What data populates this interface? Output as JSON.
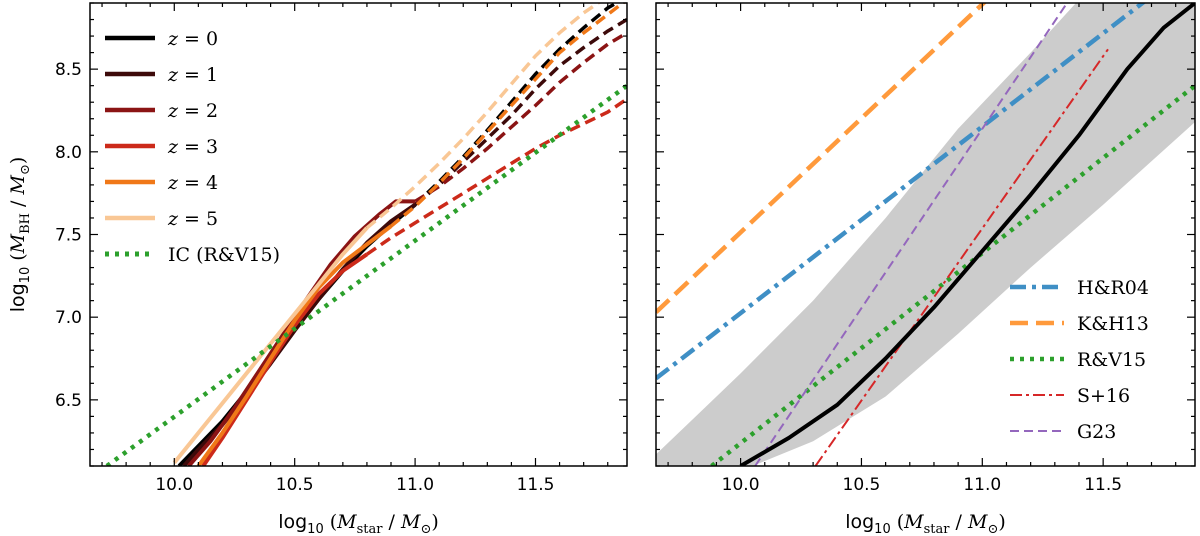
{
  "chart_data": [
    {
      "type": "line",
      "panel": "left",
      "xlabel": "log10 (Mstar / M⊙)",
      "ylabel": "log10 (MBH / M⊙)",
      "xlim": [
        9.65,
        11.88
      ],
      "ylim": [
        6.1,
        8.9
      ],
      "xticks": [
        "10.0",
        "10.5",
        "11.0",
        "11.5"
      ],
      "yticks": [
        "6.5",
        "7.0",
        "7.5",
        "8.0",
        "8.5"
      ],
      "legend_position": "upper-left",
      "series": [
        {
          "name": "z = 0",
          "color": "#000000",
          "style": "solid",
          "points": [
            [
              10.02,
              6.1
            ],
            [
              10.1,
              6.22
            ],
            [
              10.2,
              6.37
            ],
            [
              10.3,
              6.55
            ],
            [
              10.4,
              6.74
            ],
            [
              10.5,
              6.93
            ],
            [
              10.6,
              7.11
            ],
            [
              10.7,
              7.28
            ],
            [
              10.8,
              7.43
            ],
            [
              10.9,
              7.56
            ],
            [
              11.0,
              7.68
            ]
          ],
          "dashed_points": [
            [
              11.0,
              7.68
            ],
            [
              11.1,
              7.82
            ],
            [
              11.2,
              7.97
            ],
            [
              11.3,
              8.13
            ],
            [
              11.4,
              8.3
            ],
            [
              11.5,
              8.47
            ],
            [
              11.6,
              8.62
            ],
            [
              11.7,
              8.75
            ],
            [
              11.8,
              8.87
            ],
            [
              11.86,
              8.92
            ]
          ]
        },
        {
          "name": "z = 1",
          "color": "#3d0a0a",
          "style": "solid",
          "points": [
            [
              10.04,
              6.1
            ],
            [
              10.1,
              6.2
            ],
            [
              10.2,
              6.35
            ],
            [
              10.3,
              6.53
            ],
            [
              10.4,
              6.72
            ],
            [
              10.5,
              6.92
            ],
            [
              10.6,
              7.11
            ],
            [
              10.7,
              7.29
            ],
            [
              10.8,
              7.45
            ],
            [
              10.9,
              7.58
            ],
            [
              11.0,
              7.68
            ]
          ],
          "dashed_points": [
            [
              11.0,
              7.68
            ],
            [
              11.1,
              7.8
            ],
            [
              11.2,
              7.94
            ],
            [
              11.3,
              8.08
            ],
            [
              11.4,
              8.22
            ],
            [
              11.5,
              8.38
            ],
            [
              11.6,
              8.52
            ],
            [
              11.7,
              8.63
            ],
            [
              11.8,
              8.73
            ],
            [
              11.88,
              8.8
            ]
          ]
        },
        {
          "name": "z = 2",
          "color": "#8b1414",
          "style": "solid",
          "points": [
            [
              10.06,
              6.1
            ],
            [
              10.15,
              6.25
            ],
            [
              10.25,
              6.45
            ],
            [
              10.35,
              6.67
            ],
            [
              10.45,
              6.89
            ],
            [
              10.55,
              7.11
            ],
            [
              10.65,
              7.32
            ],
            [
              10.75,
              7.49
            ],
            [
              10.85,
              7.62
            ],
            [
              10.92,
              7.7
            ],
            [
              11.0,
              7.7
            ]
          ],
          "dashed_points": [
            [
              11.0,
              7.7
            ],
            [
              11.1,
              7.79
            ],
            [
              11.2,
              7.9
            ],
            [
              11.3,
              8.02
            ],
            [
              11.4,
              8.15
            ],
            [
              11.5,
              8.28
            ],
            [
              11.6,
              8.42
            ],
            [
              11.7,
              8.54
            ],
            [
              11.8,
              8.65
            ],
            [
              11.88,
              8.72
            ]
          ]
        },
        {
          "name": "z = 3",
          "color": "#cc2a1a",
          "style": "solid",
          "points": [
            [
              10.12,
              6.1
            ],
            [
              10.2,
              6.27
            ],
            [
              10.3,
              6.5
            ],
            [
              10.4,
              6.73
            ],
            [
              10.5,
              6.95
            ],
            [
              10.6,
              7.14
            ],
            [
              10.7,
              7.28
            ],
            [
              10.8,
              7.38
            ]
          ],
          "dashed_points": [
            [
              10.8,
              7.38
            ],
            [
              10.9,
              7.48
            ],
            [
              11.0,
              7.57
            ],
            [
              11.1,
              7.66
            ],
            [
              11.2,
              7.75
            ],
            [
              11.3,
              7.84
            ],
            [
              11.4,
              7.93
            ],
            [
              11.5,
              8.02
            ],
            [
              11.6,
              8.1
            ],
            [
              11.7,
              8.17
            ],
            [
              11.8,
              8.24
            ],
            [
              11.88,
              8.32
            ]
          ]
        },
        {
          "name": "z = 4",
          "color": "#f07818",
          "style": "solid",
          "points": [
            [
              10.1,
              6.1
            ],
            [
              10.2,
              6.3
            ],
            [
              10.3,
              6.52
            ],
            [
              10.4,
              6.75
            ],
            [
              10.5,
              6.98
            ],
            [
              10.6,
              7.18
            ],
            [
              10.7,
              7.33
            ],
            [
              10.8,
              7.44
            ],
            [
              10.9,
              7.55
            ]
          ],
          "dashed_points": [
            [
              10.9,
              7.55
            ],
            [
              11.0,
              7.67
            ],
            [
              11.1,
              7.81
            ],
            [
              11.2,
              7.96
            ],
            [
              11.3,
              8.12
            ],
            [
              11.4,
              8.28
            ],
            [
              11.5,
              8.44
            ],
            [
              11.6,
              8.6
            ],
            [
              11.7,
              8.72
            ],
            [
              11.8,
              8.83
            ],
            [
              11.88,
              8.92
            ]
          ]
        },
        {
          "name": "z = 5",
          "color": "#f9c795",
          "style": "solid",
          "points": [
            [
              10.0,
              6.12
            ],
            [
              10.1,
              6.3
            ],
            [
              10.2,
              6.48
            ],
            [
              10.3,
              6.66
            ],
            [
              10.4,
              6.84
            ],
            [
              10.5,
              7.02
            ],
            [
              10.6,
              7.2
            ],
            [
              10.7,
              7.38
            ],
            [
              10.8,
              7.54
            ]
          ],
          "dashed_points": [
            [
              10.8,
              7.54
            ],
            [
              10.9,
              7.66
            ],
            [
              11.0,
              7.79
            ],
            [
              11.1,
              7.93
            ],
            [
              11.2,
              8.08
            ],
            [
              11.3,
              8.24
            ],
            [
              11.4,
              8.41
            ],
            [
              11.5,
              8.58
            ],
            [
              11.6,
              8.72
            ],
            [
              11.7,
              8.84
            ],
            [
              11.78,
              8.92
            ]
          ]
        },
        {
          "name": "IC (R&V15)",
          "color": "#2ca02c",
          "style": "dotted",
          "points": [
            [
              9.72,
              6.1
            ],
            [
              11.88,
              8.4
            ]
          ]
        }
      ],
      "legend_math": [
        {
          "z": "z",
          "rest": " = 0"
        },
        {
          "z": "z",
          "rest": " = 1"
        },
        {
          "z": "z",
          "rest": " = 2"
        },
        {
          "z": "z",
          "rest": " = 3"
        },
        {
          "z": "z",
          "rest": " = 4"
        },
        {
          "z": "z",
          "rest": " = 5"
        },
        {
          "z": "",
          "rest": "IC (R&V15)"
        }
      ]
    },
    {
      "type": "line",
      "panel": "right",
      "xlabel": "log10 (Mstar / M⊙)",
      "xlim": [
        9.65,
        11.88
      ],
      "ylim": [
        6.1,
        8.9
      ],
      "xticks": [
        "10.0",
        "10.5",
        "11.0",
        "11.5"
      ],
      "legend_position": "lower-right",
      "band": {
        "color": "#cccccc",
        "lower": [
          [
            10.05,
            6.1
          ],
          [
            10.3,
            6.25
          ],
          [
            10.6,
            6.52
          ],
          [
            10.9,
            6.9
          ],
          [
            11.2,
            7.3
          ],
          [
            11.5,
            7.68
          ],
          [
            11.88,
            8.18
          ]
        ],
        "upper": [
          [
            9.65,
            6.17
          ],
          [
            9.8,
            6.38
          ],
          [
            10.0,
            6.66
          ],
          [
            10.3,
            7.1
          ],
          [
            10.6,
            7.6
          ],
          [
            10.9,
            8.14
          ],
          [
            11.2,
            8.6
          ],
          [
            11.4,
            8.92
          ]
        ]
      },
      "series": [
        {
          "name": "H&R04",
          "color": "#3f8fc5",
          "style": "dashdot-thick",
          "points": [
            [
              9.65,
              6.63
            ],
            [
              11.68,
              8.92
            ]
          ]
        },
        {
          "name": "K&H13",
          "color": "#ff9a3c",
          "style": "dashed-thick",
          "points": [
            [
              9.65,
              7.03
            ],
            [
              11.02,
              8.92
            ]
          ]
        },
        {
          "name": "R&V15",
          "color": "#2ca02c",
          "style": "dotted",
          "points": [
            [
              9.88,
              6.1
            ],
            [
              11.88,
              8.4
            ]
          ]
        },
        {
          "name": "S+16",
          "color": "#d62728",
          "style": "dashdot-thin",
          "points": [
            [
              10.31,
              6.1
            ],
            [
              11.52,
              8.62
            ]
          ]
        },
        {
          "name": "G23",
          "color": "#9467bd",
          "style": "dashed-thin",
          "points": [
            [
              10.06,
              6.1
            ],
            [
              11.36,
              8.92
            ]
          ]
        },
        {
          "name": "black-median",
          "color": "#000000",
          "style": "solid",
          "points": [
            [
              10.0,
              6.1
            ],
            [
              10.2,
              6.27
            ],
            [
              10.4,
              6.47
            ],
            [
              10.6,
              6.75
            ],
            [
              10.8,
              7.06
            ],
            [
              11.0,
              7.4
            ],
            [
              11.2,
              7.74
            ],
            [
              11.4,
              8.1
            ],
            [
              11.6,
              8.5
            ],
            [
              11.75,
              8.75
            ],
            [
              11.88,
              8.9
            ]
          ]
        }
      ]
    }
  ]
}
